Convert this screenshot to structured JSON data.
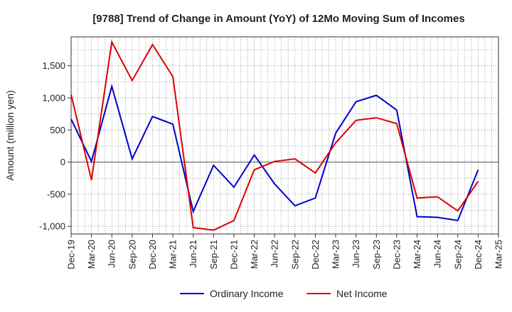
{
  "chart_data": {
    "type": "line",
    "title": "[9788]  Trend of Change in Amount (YoY) of 12Mo Moving Sum of Incomes",
    "ylabel": "Amount (million yen)",
    "xlabel": "",
    "ylim": [
      -1120,
      1950
    ],
    "yticks": [
      -1000,
      -500,
      0,
      500,
      1000,
      1500
    ],
    "ytick_labels": [
      "-1,000",
      "-500",
      "0",
      "500",
      "1,000",
      "1,500"
    ],
    "x": [
      "Dec-19",
      "Mar-20",
      "Jun-20",
      "Sep-20",
      "Dec-20",
      "Mar-21",
      "Jun-21",
      "Sep-21",
      "Dec-21",
      "Mar-22",
      "Jun-22",
      "Sep-22",
      "Dec-22",
      "Mar-23",
      "Jun-23",
      "Sep-23",
      "Dec-23",
      "Mar-24",
      "Jun-24",
      "Sep-24",
      "Dec-24",
      "Mar-25"
    ],
    "grid": true,
    "legend_position": "bottom",
    "series": [
      {
        "name": "Ordinary Income",
        "color": "#0000cc",
        "values": [
          670,
          10,
          1180,
          50,
          710,
          590,
          -770,
          -50,
          -390,
          110,
          -340,
          -680,
          -560,
          450,
          940,
          1040,
          810,
          -850,
          -860,
          -910,
          -120,
          null
        ]
      },
      {
        "name": "Net Income",
        "color": "#dd0000",
        "values": [
          1050,
          -280,
          1870,
          1270,
          1830,
          1330,
          -1020,
          -1060,
          -910,
          -120,
          10,
          50,
          -170,
          300,
          650,
          690,
          600,
          -560,
          -540,
          -760,
          -300,
          null
        ]
      }
    ]
  }
}
